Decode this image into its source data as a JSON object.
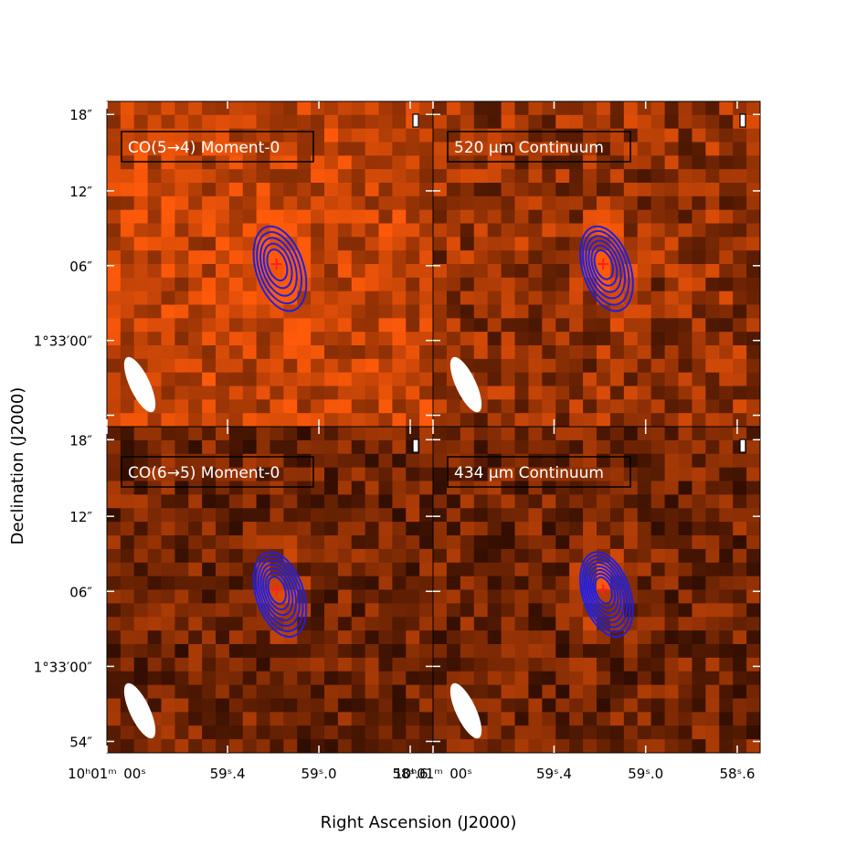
{
  "figure": {
    "xlabel": "Right Ascension (J2000)",
    "ylabel": "Declination (J2000)"
  },
  "colors": {
    "background_low": "#1e0600",
    "background_high": "#ff5a0a",
    "contour": "#2020e0",
    "marker": "#ff2020",
    "beam": "#ffffff",
    "frame": "#000000"
  },
  "chart_data": [
    {
      "type": "heatmap",
      "panel": "top-left",
      "title": "CO(5→4) Moment-0",
      "x_tick_labels": [],
      "y_tick_labels": [
        "18″",
        "12″",
        "06″",
        "1°33′00″"
      ],
      "source_peak": {
        "ra": "10h00m59.20s",
        "dec": "+1°33′06″"
      },
      "contour_levels": 5,
      "brightness": "bright",
      "beam": "lower-left ellipse"
    },
    {
      "type": "heatmap",
      "panel": "top-right",
      "title": "520 μm Continuum",
      "x_tick_labels": [],
      "y_tick_labels": [],
      "source_peak": {
        "ra": "10h00m59.20s",
        "dec": "+1°33′06″"
      },
      "contour_levels": 6,
      "brightness": "medium",
      "beam": "lower-left ellipse"
    },
    {
      "type": "heatmap",
      "panel": "bottom-left",
      "title": "CO(6→5) Moment-0",
      "x_tick_labels": [
        "10ʰ01ᵐ 00ˢ",
        "59ˢ.4",
        "59ˢ.0",
        "58ˢ.6"
      ],
      "y_tick_labels": [
        "18″",
        "12″",
        "06″",
        "1°33′00″",
        "54″"
      ],
      "source_peak": {
        "ra": "10h00m59.20s",
        "dec": "+1°33′06″"
      },
      "contour_levels": 7,
      "brightness": "dark",
      "beam": "lower-left ellipse"
    },
    {
      "type": "heatmap",
      "panel": "bottom-right",
      "title": "434 μm Continuum",
      "x_tick_labels": [
        "10ʰ01ᵐ 00ˢ",
        "59ˢ.4",
        "59ˢ.0",
        "58ˢ.6"
      ],
      "y_tick_labels": [],
      "source_peak": {
        "ra": "10h00m59.20s",
        "dec": "+1°33′06″"
      },
      "contour_levels": 8,
      "brightness": "dark",
      "beam": "lower-left ellipse"
    }
  ]
}
